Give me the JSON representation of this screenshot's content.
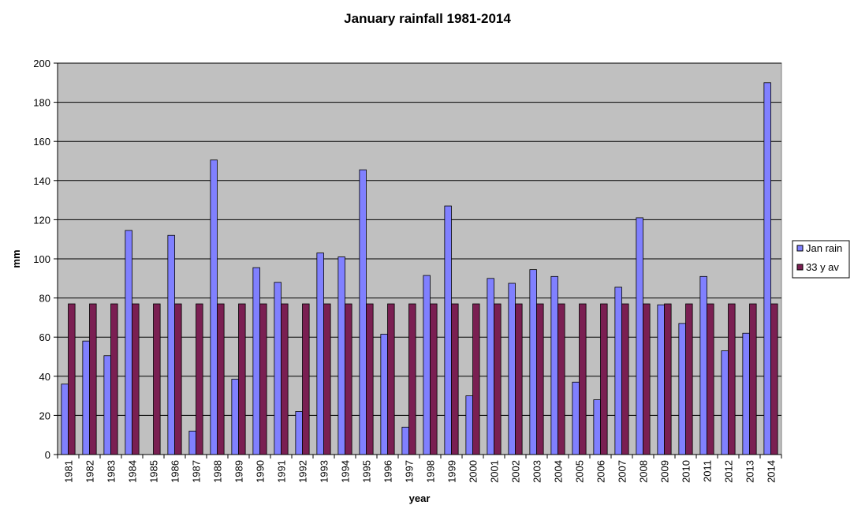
{
  "chart_data": {
    "type": "bar",
    "title": "January rainfall 1981-2014",
    "xlabel": "year",
    "ylabel": "mm",
    "ylim": [
      0,
      200
    ],
    "yticks": [
      0,
      20,
      40,
      60,
      80,
      100,
      120,
      140,
      160,
      180,
      200
    ],
    "grid": true,
    "legend_position": "right",
    "categories": [
      "1981",
      "1982",
      "1983",
      "1984",
      "1985",
      "1986",
      "1987",
      "1988",
      "1989",
      "1990",
      "1991",
      "1992",
      "1993",
      "1994",
      "1995",
      "1996",
      "1997",
      "1998",
      "1999",
      "2000",
      "2001",
      "2002",
      "2003",
      "2004",
      "2005",
      "2006",
      "2007",
      "2008",
      "2009",
      "2010",
      "2011",
      "2012",
      "2013",
      "2014"
    ],
    "series": [
      {
        "name": "Jan rain",
        "color": "#8080ff",
        "values": [
          36,
          58,
          50.5,
          114.5,
          0,
          112,
          12,
          150.5,
          38.5,
          95.5,
          88,
          22,
          103,
          101,
          145.5,
          61.5,
          14,
          91.5,
          127,
          30,
          90,
          87.5,
          94.5,
          91,
          37,
          28,
          85.5,
          121,
          76.5,
          67,
          91,
          53,
          62,
          190
        ]
      },
      {
        "name": "33 y av",
        "color": "#7a1f52",
        "values": [
          77,
          77,
          77,
          77,
          77,
          77,
          77,
          77,
          77,
          77,
          77,
          77,
          77,
          77,
          77,
          77,
          77,
          77,
          77,
          77,
          77,
          77,
          77,
          77,
          77,
          77,
          77,
          77,
          77,
          77,
          77,
          77,
          77,
          77
        ]
      }
    ]
  }
}
